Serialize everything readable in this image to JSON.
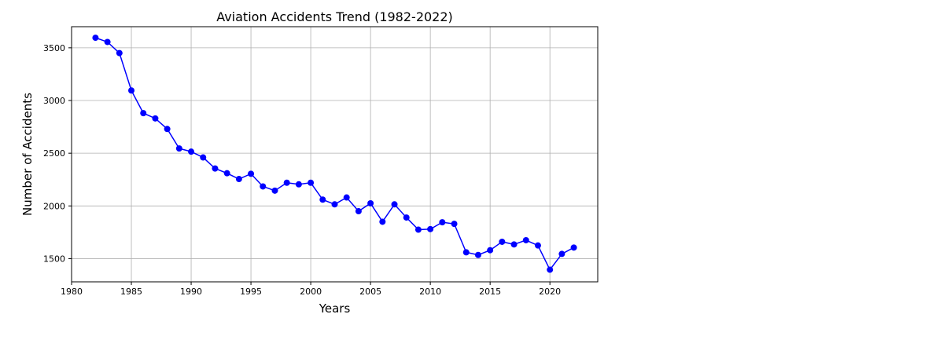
{
  "chart_data": {
    "type": "line",
    "title": "Aviation Accidents Trend (1982-2022)",
    "xlabel": "Years",
    "ylabel": "Number of Accidents",
    "xlim": [
      1980,
      2024
    ],
    "ylim": [
      1280,
      3700
    ],
    "xticks": [
      1980,
      1985,
      1990,
      1995,
      2000,
      2005,
      2010,
      2015,
      2020
    ],
    "yticks": [
      1500,
      2000,
      2500,
      3000,
      3500
    ],
    "grid": true,
    "series": [
      {
        "color": "#0000ff",
        "marker": "circle",
        "x": [
          1982,
          1983,
          1984,
          1985,
          1986,
          1987,
          1988,
          1989,
          1990,
          1991,
          1992,
          1993,
          1994,
          1995,
          1996,
          1997,
          1998,
          1999,
          2000,
          2001,
          2002,
          2003,
          2004,
          2005,
          2006,
          2007,
          2008,
          2009,
          2010,
          2011,
          2012,
          2013,
          2014,
          2015,
          2016,
          2017,
          2018,
          2019,
          2020,
          2021,
          2022
        ],
        "values": [
          3595,
          3555,
          3450,
          3095,
          2880,
          2830,
          2730,
          2545,
          2515,
          2460,
          2355,
          2310,
          2255,
          2305,
          2185,
          2145,
          2220,
          2205,
          2220,
          2060,
          2015,
          2080,
          1950,
          2025,
          1850,
          2015,
          1890,
          1775,
          1780,
          1845,
          1830,
          1560,
          1535,
          1580,
          1660,
          1635,
          1675,
          1625,
          1395,
          1545,
          1605
        ]
      }
    ]
  }
}
